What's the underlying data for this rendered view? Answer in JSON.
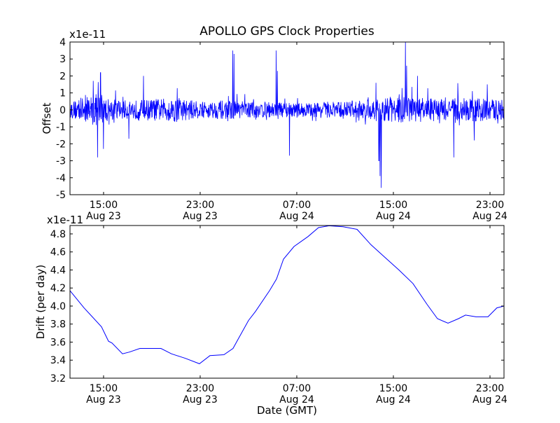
{
  "chart_data": [
    {
      "type": "line",
      "title": "APOLLO GPS Clock Properties",
      "ylabel": "Offset",
      "scale_label": "x1e-11",
      "xlabel": "",
      "xlim_hours_from_aug23_0000": [
        12.22,
        48.16
      ],
      "ylim": [
        -5,
        4
      ],
      "yticks": [
        -5,
        -4,
        -3,
        -2,
        -1,
        0,
        1,
        2,
        3,
        4
      ],
      "xticks": [
        {
          "hours": 15,
          "time": "15:00",
          "date": "Aug 23"
        },
        {
          "hours": 23,
          "time": "23:00",
          "date": "Aug 23"
        },
        {
          "hours": 31,
          "time": "07:00",
          "date": "Aug 24"
        },
        {
          "hours": 39,
          "time": "15:00",
          "date": "Aug 24"
        },
        {
          "hours": 47,
          "time": "23:00",
          "date": "Aug 24"
        }
      ],
      "color": "#0000ff",
      "noise_envelope": [
        [
          12.2,
          0.6
        ],
        [
          14.5,
          1.2
        ],
        [
          15.5,
          0.8
        ],
        [
          17,
          0.7
        ],
        [
          19,
          0.8
        ],
        [
          21,
          0.9
        ],
        [
          23,
          0.6
        ],
        [
          25,
          0.7
        ],
        [
          27,
          0.6
        ],
        [
          29,
          0.6
        ],
        [
          31,
          0.5
        ],
        [
          33,
          0.6
        ],
        [
          35,
          0.6
        ],
        [
          37,
          0.8
        ],
        [
          39,
          1.0
        ],
        [
          41,
          0.9
        ],
        [
          43,
          0.8
        ],
        [
          45,
          0.9
        ],
        [
          47,
          0.8
        ],
        [
          48.2,
          0.8
        ]
      ],
      "spikes": [
        [
          14.5,
          -2.8
        ],
        [
          14.75,
          2.2
        ],
        [
          15.0,
          -2.3
        ],
        [
          17.1,
          -1.7
        ],
        [
          18.3,
          2.0
        ],
        [
          25.7,
          3.5
        ],
        [
          25.8,
          3.3
        ],
        [
          29.3,
          3.5
        ],
        [
          29.4,
          2.3
        ],
        [
          30.4,
          -2.7
        ],
        [
          38.0,
          -4.6
        ],
        [
          37.9,
          -3.9
        ],
        [
          37.8,
          -3.0
        ],
        [
          40.0,
          4.0
        ],
        [
          40.1,
          2.6
        ],
        [
          44.0,
          -2.8
        ],
        [
          41.0,
          2.0
        ],
        [
          45.7,
          -1.8
        ]
      ]
    },
    {
      "type": "line",
      "title": "",
      "ylabel": "Drift (per day)",
      "scale_label": "x1e-11",
      "xlabel": "Date (GMT)",
      "xlim_hours_from_aug23_0000": [
        12.22,
        48.16
      ],
      "ylim": [
        3.2,
        4.893
      ],
      "yticks": [
        3.2,
        3.4,
        3.6,
        3.8,
        4.0,
        4.2,
        4.4,
        4.6,
        4.8
      ],
      "xticks": [
        {
          "hours": 15,
          "time": "15:00",
          "date": "Aug 23"
        },
        {
          "hours": 23,
          "time": "23:00",
          "date": "Aug 23"
        },
        {
          "hours": 31,
          "time": "07:00",
          "date": "Aug 24"
        },
        {
          "hours": 39,
          "time": "15:00",
          "date": "Aug 24"
        },
        {
          "hours": 47,
          "time": "23:00",
          "date": "Aug 24"
        }
      ],
      "color": "#0000ff",
      "x": [
        12.22,
        13.38,
        14.83,
        15.41,
        15.7,
        16.57,
        17.14,
        18.01,
        19.75,
        20.62,
        21.78,
        22.94,
        23.81,
        24.97,
        25.72,
        26.13,
        27.0,
        27.58,
        28.74,
        29.32,
        29.9,
        30.77,
        31.93,
        32.8,
        33.67,
        34.83,
        35.99,
        37.14,
        38.3,
        39.46,
        40.62,
        41.78,
        42.65,
        43.52,
        44.39,
        44.97,
        45.84,
        46.83,
        47.57,
        48.16
      ],
      "y": [
        4.17,
        3.98,
        3.77,
        3.61,
        3.59,
        3.47,
        3.49,
        3.53,
        3.53,
        3.47,
        3.42,
        3.36,
        3.45,
        3.46,
        3.53,
        3.63,
        3.84,
        3.94,
        4.17,
        4.3,
        4.52,
        4.66,
        4.77,
        4.87,
        4.89,
        4.88,
        4.85,
        4.68,
        4.54,
        4.4,
        4.25,
        4.02,
        3.86,
        3.81,
        3.86,
        3.9,
        3.88,
        3.88,
        3.98,
        4.0
      ]
    }
  ]
}
